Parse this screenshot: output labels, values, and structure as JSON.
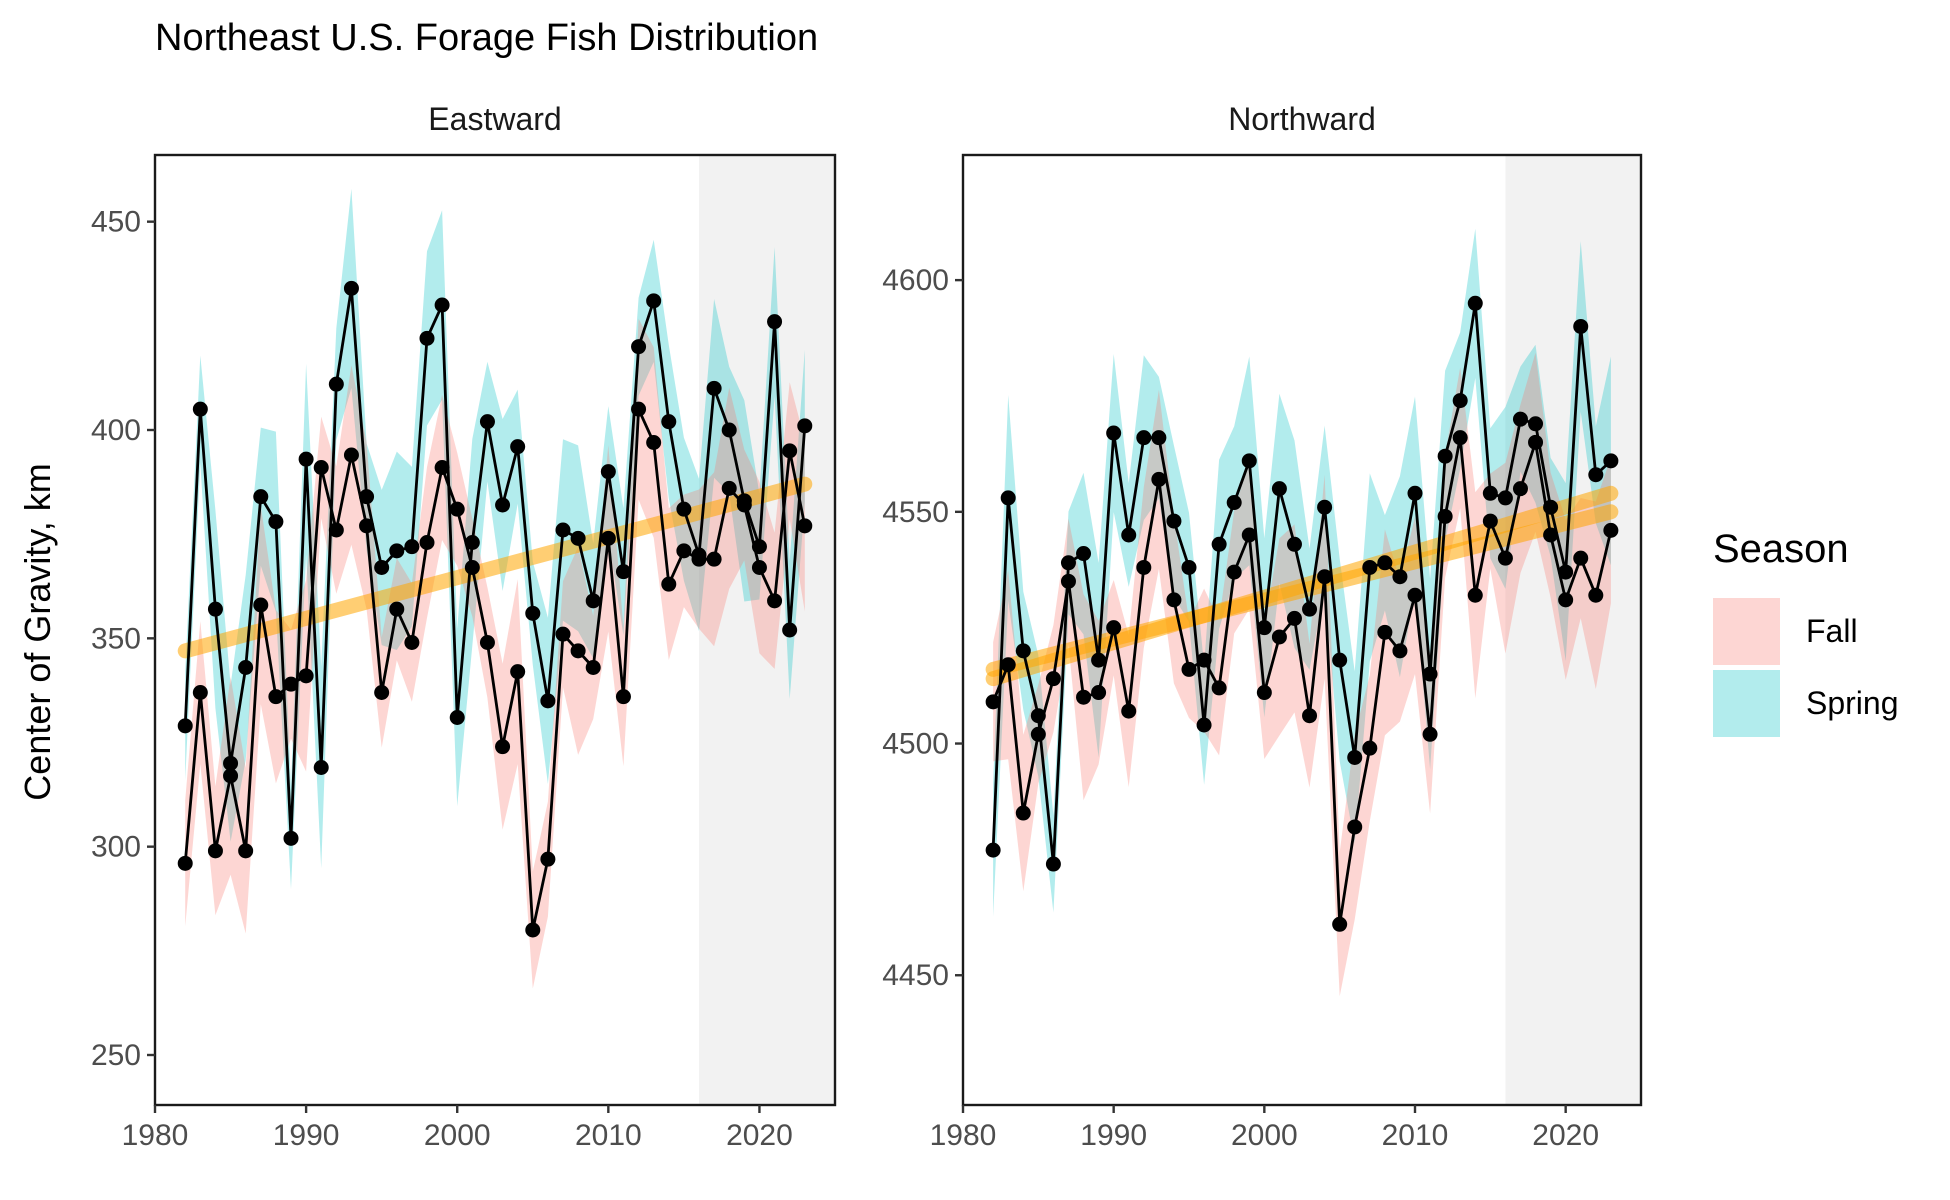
{
  "chart_data": {
    "type": "line",
    "title": "Northeast U.S. Forage Fish Distribution",
    "ylabel": "Center of Gravity, km",
    "xlabel": "",
    "legend": {
      "title": "Season",
      "position": "right",
      "entries": [
        {
          "label": "Fall",
          "color": "#F8766D"
        },
        {
          "label": "Spring",
          "color": "#00BFC4"
        }
      ]
    },
    "colors": {
      "line": "#000000",
      "trend": "#FFA500",
      "shade": "#f2f2f2",
      "ribbon_fall": "#F8766D",
      "ribbon_spring": "#00BFC4"
    },
    "shaded_from_year": 2016,
    "panels": [
      {
        "label": "Eastward",
        "xlim": [
          1980,
          2025
        ],
        "ylim": [
          238,
          466
        ],
        "xticks": [
          "1980",
          "1990",
          "2000",
          "2010",
          "2020"
        ],
        "yticks": [
          "250",
          "300",
          "350",
          "400",
          "450"
        ],
        "years": [
          1982,
          1983,
          1984,
          1985,
          1986,
          1987,
          1988,
          1989,
          1990,
          1991,
          1992,
          1993,
          1994,
          1995,
          1996,
          1997,
          1998,
          1999,
          2000,
          2001,
          2002,
          2003,
          2004,
          2005,
          2006,
          2007,
          2008,
          2009,
          2010,
          2011,
          2012,
          2013,
          2014,
          2015,
          2016,
          2017,
          2018,
          2019,
          2020,
          2021,
          2022,
          2023
        ],
        "fall": [
          296,
          337,
          299,
          317,
          299,
          358,
          336,
          339,
          341,
          391,
          376,
          394,
          377,
          337,
          357,
          349,
          373,
          391,
          381,
          367,
          349,
          324,
          342,
          280,
          297,
          351,
          347,
          343,
          374,
          336,
          405,
          397,
          363,
          371,
          369,
          369,
          386,
          382,
          367,
          359,
          395,
          377
        ],
        "spring": [
          329,
          405,
          357,
          320,
          343,
          384,
          378,
          302,
          393,
          319,
          411,
          434,
          384,
          367,
          371,
          372,
          422,
          430,
          331,
          373,
          402,
          382,
          396,
          356,
          335,
          376,
          374,
          359,
          390,
          366,
          420,
          431,
          402,
          381,
          370,
          410,
          400,
          383,
          372,
          426,
          352,
          401
        ],
        "trends": [
          [
            347,
            387
          ]
        ]
      },
      {
        "label": "Northward",
        "xlim": [
          1980,
          2025
        ],
        "ylim": [
          4422,
          4627
        ],
        "xticks": [
          "1980",
          "1990",
          "2000",
          "2010",
          "2020"
        ],
        "yticks": [
          "4450",
          "4500",
          "4550",
          "4600"
        ],
        "years": [
          1982,
          1983,
          1984,
          1985,
          1986,
          1987,
          1988,
          1989,
          1990,
          1991,
          1992,
          1993,
          1994,
          1995,
          1996,
          1997,
          1998,
          1999,
          2000,
          2001,
          2002,
          2003,
          2004,
          2005,
          2006,
          2007,
          2008,
          2009,
          2010,
          2011,
          2012,
          2013,
          2014,
          2015,
          2016,
          2017,
          2018,
          2019,
          2020,
          2021,
          2022,
          2023
        ],
        "fall": [
          4509,
          4517,
          4485,
          4502,
          4514,
          4535,
          4510,
          4511,
          4525,
          4507,
          4538,
          4557,
          4531,
          4516,
          4518,
          4512,
          4537,
          4545,
          4511,
          4523,
          4527,
          4506,
          4536,
          4461,
          4482,
          4499,
          4524,
          4520,
          4532,
          4502,
          4549,
          4566,
          4532,
          4548,
          4540,
          4555,
          4565,
          4545,
          4531,
          4540,
          4532,
          4546
        ],
        "spring": [
          4477,
          4553,
          4520,
          4506,
          4474,
          4539,
          4541,
          4518,
          4567,
          4545,
          4566,
          4566,
          4548,
          4538,
          4504,
          4543,
          4552,
          4561,
          4525,
          4555,
          4543,
          4529,
          4551,
          4518,
          4497,
          4538,
          4539,
          4536,
          4554,
          4515,
          4562,
          4574,
          4595,
          4554,
          4553,
          4570,
          4569,
          4551,
          4537,
          4590,
          4558,
          4561
        ],
        "trends": [
          [
            4514,
            4554
          ],
          [
            4516,
            4550
          ]
        ]
      }
    ]
  }
}
